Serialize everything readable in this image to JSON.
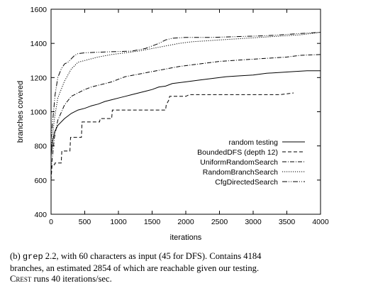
{
  "chart_data": {
    "type": "line",
    "xlabel": "iterations",
    "ylabel": "branches covered",
    "xlim": [
      0,
      4000
    ],
    "ylim": [
      400,
      1600
    ],
    "xticks": [
      0,
      500,
      1000,
      1500,
      2000,
      2500,
      3000,
      3500,
      4000
    ],
    "yticks": [
      400,
      600,
      800,
      1000,
      1200,
      1400,
      1600
    ],
    "grid": false,
    "legend_position": "bottom-right",
    "series": [
      {
        "name": "random testing",
        "dash": "solid",
        "points": [
          [
            0,
            740
          ],
          [
            25,
            830
          ],
          [
            50,
            880
          ],
          [
            100,
            920
          ],
          [
            200,
            960
          ],
          [
            300,
            990
          ],
          [
            400,
            1010
          ],
          [
            500,
            1020
          ],
          [
            600,
            1035
          ],
          [
            700,
            1045
          ],
          [
            800,
            1060
          ],
          [
            900,
            1070
          ],
          [
            1000,
            1080
          ],
          [
            1100,
            1090
          ],
          [
            1200,
            1100
          ],
          [
            1300,
            1110
          ],
          [
            1400,
            1120
          ],
          [
            1500,
            1130
          ],
          [
            1600,
            1145
          ],
          [
            1700,
            1150
          ],
          [
            1800,
            1165
          ],
          [
            2000,
            1175
          ],
          [
            2200,
            1185
          ],
          [
            2400,
            1195
          ],
          [
            2600,
            1205
          ],
          [
            2800,
            1210
          ],
          [
            3000,
            1215
          ],
          [
            3200,
            1225
          ],
          [
            3400,
            1230
          ],
          [
            3600,
            1235
          ],
          [
            3800,
            1240
          ],
          [
            4000,
            1240
          ]
        ]
      },
      {
        "name": "BoundedDFS (depth 12)",
        "dash": "dashed",
        "points": [
          [
            0,
            600
          ],
          [
            15,
            690
          ],
          [
            50,
            690
          ],
          [
            60,
            700
          ],
          [
            150,
            700
          ],
          [
            160,
            770
          ],
          [
            280,
            770
          ],
          [
            290,
            850
          ],
          [
            450,
            850
          ],
          [
            460,
            940
          ],
          [
            720,
            940
          ],
          [
            730,
            960
          ],
          [
            900,
            960
          ],
          [
            910,
            1010
          ],
          [
            1700,
            1010
          ],
          [
            1710,
            1040
          ],
          [
            1750,
            1070
          ],
          [
            1760,
            1090
          ],
          [
            2000,
            1090
          ],
          [
            2050,
            1100
          ],
          [
            3400,
            1100
          ],
          [
            3600,
            1110
          ]
        ]
      },
      {
        "name": "UniformRandomSearch",
        "dash": "dashdot",
        "points": [
          [
            0,
            660
          ],
          [
            50,
            850
          ],
          [
            100,
            950
          ],
          [
            200,
            1040
          ],
          [
            300,
            1090
          ],
          [
            400,
            1110
          ],
          [
            500,
            1130
          ],
          [
            600,
            1145
          ],
          [
            700,
            1155
          ],
          [
            800,
            1165
          ],
          [
            900,
            1175
          ],
          [
            1000,
            1190
          ],
          [
            1100,
            1205
          ],
          [
            1300,
            1220
          ],
          [
            1500,
            1235
          ],
          [
            1700,
            1250
          ],
          [
            1900,
            1265
          ],
          [
            2100,
            1275
          ],
          [
            2300,
            1285
          ],
          [
            2500,
            1295
          ],
          [
            2700,
            1300
          ],
          [
            2900,
            1305
          ],
          [
            3100,
            1310
          ],
          [
            3300,
            1315
          ],
          [
            3500,
            1320
          ],
          [
            3700,
            1330
          ],
          [
            4000,
            1335
          ]
        ]
      },
      {
        "name": "RandomBranchSearch",
        "dash": "dotted",
        "points": [
          [
            0,
            780
          ],
          [
            50,
            960
          ],
          [
            100,
            1080
          ],
          [
            200,
            1180
          ],
          [
            300,
            1250
          ],
          [
            400,
            1290
          ],
          [
            500,
            1300
          ],
          [
            700,
            1320
          ],
          [
            900,
            1335
          ],
          [
            1100,
            1345
          ],
          [
            1300,
            1355
          ],
          [
            1500,
            1370
          ],
          [
            1700,
            1385
          ],
          [
            1900,
            1400
          ],
          [
            2100,
            1410
          ],
          [
            2300,
            1415
          ],
          [
            2500,
            1420
          ],
          [
            2700,
            1425
          ],
          [
            2900,
            1430
          ],
          [
            3100,
            1435
          ],
          [
            3300,
            1440
          ],
          [
            3500,
            1445
          ],
          [
            3700,
            1450
          ],
          [
            3900,
            1460
          ],
          [
            4000,
            1465
          ]
        ]
      },
      {
        "name": "CfgDirectedSearch",
        "dash": "dashdotdot",
        "points": [
          [
            0,
            840
          ],
          [
            60,
            1100
          ],
          [
            100,
            1200
          ],
          [
            150,
            1250
          ],
          [
            200,
            1280
          ],
          [
            250,
            1290
          ],
          [
            300,
            1310
          ],
          [
            350,
            1330
          ],
          [
            400,
            1340
          ],
          [
            500,
            1345
          ],
          [
            800,
            1350
          ],
          [
            1200,
            1355
          ],
          [
            1400,
            1370
          ],
          [
            1600,
            1400
          ],
          [
            1700,
            1420
          ],
          [
            1800,
            1430
          ],
          [
            2000,
            1435
          ],
          [
            2400,
            1435
          ],
          [
            2800,
            1440
          ],
          [
            3200,
            1445
          ],
          [
            3600,
            1455
          ],
          [
            4000,
            1465
          ]
        ]
      }
    ]
  },
  "caption": {
    "label": "(b) ",
    "program": "grep",
    "line1_rest": " 2.2, with 60 characters as input (45 for DFS). Contains 4184",
    "line2": "branches, an estimated 2854 of which are reachable given our testing.",
    "line3_tool": "Crest",
    "line3_rest": " runs 40 iterations/sec."
  }
}
